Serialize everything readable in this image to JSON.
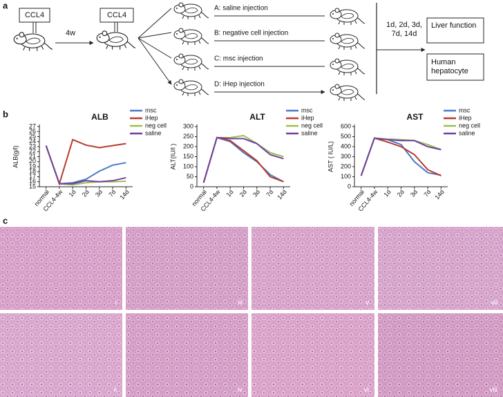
{
  "panel_labels": [
    "a",
    "b",
    "c"
  ],
  "diagram": {
    "ccl4_boxes": [
      "CCL4",
      "CCL4"
    ],
    "duration": "4w",
    "groups": [
      "A: saline injection",
      "B: negative cell injection",
      "C: msc injection",
      "D:  iHep  injection"
    ],
    "timepoints": "1d, 2d, 3d, 7d, 14d",
    "outcomes": [
      "Liver function",
      "Human hepatocyte"
    ]
  },
  "chart_data": [
    {
      "type": "line",
      "title": "ALB",
      "y_label": "ALB(g/l)",
      "categories": [
        "normal",
        "CCL4-4w",
        "1d",
        "2d",
        "3d",
        "7d",
        "14d"
      ],
      "ylim": [
        15,
        27
      ],
      "yticks": [
        15,
        16,
        17,
        18,
        19,
        20,
        21,
        22,
        23,
        24,
        25,
        26,
        27
      ],
      "series": [
        {
          "name": "msc",
          "color": "#4a78c8",
          "values": [
            23.2,
            15.6,
            15.8,
            16.5,
            18.1,
            19.3,
            19.8
          ]
        },
        {
          "name": "iHep",
          "color": "#b83a2c",
          "values": [
            23.2,
            15.6,
            24.4,
            23.3,
            22.8,
            23.2,
            23.6
          ]
        },
        {
          "name": "neg cell",
          "color": "#9cbf4e",
          "values": [
            23.2,
            15.6,
            15.4,
            15.8,
            16.0,
            16.0,
            16.1
          ]
        },
        {
          "name": "saline",
          "color": "#7040a0",
          "values": [
            23.2,
            15.6,
            15.6,
            16.2,
            16.0,
            16.2,
            16.8
          ]
        }
      ]
    },
    {
      "type": "line",
      "title": "ALT",
      "y_label": "ALT(IU/l )",
      "categories": [
        "normal",
        "CCL4-4w",
        "1d",
        "2d",
        "3d",
        "7d",
        "14d"
      ],
      "ylim": [
        0,
        300
      ],
      "yticks": [
        0,
        50,
        100,
        150,
        200,
        250,
        300
      ],
      "series": [
        {
          "name": "msc",
          "color": "#4a78c8",
          "values": [
            20,
            245,
            225,
            170,
            125,
            60,
            25
          ]
        },
        {
          "name": "iHep",
          "color": "#b83a2c",
          "values": [
            20,
            245,
            230,
            180,
            130,
            50,
            25
          ]
        },
        {
          "name": "neg cell",
          "color": "#9cbf4e",
          "values": [
            20,
            245,
            245,
            255,
            215,
            170,
            150
          ]
        },
        {
          "name": "saline",
          "color": "#7040a0",
          "values": [
            20,
            245,
            240,
            240,
            215,
            160,
            140
          ]
        }
      ]
    },
    {
      "type": "line",
      "title": "AST",
      "y_label": "AST ( IU/L)",
      "categories": [
        "normal",
        "CCL4-4w",
        "1d",
        "2d",
        "3d",
        "7d",
        "14d"
      ],
      "ylim": [
        0,
        600
      ],
      "yticks": [
        0,
        100,
        200,
        300,
        400,
        500,
        600
      ],
      "series": [
        {
          "name": "msc",
          "color": "#4a78c8",
          "values": [
            110,
            485,
            470,
            420,
            250,
            140,
            115
          ]
        },
        {
          "name": "iHep",
          "color": "#b83a2c",
          "values": [
            110,
            485,
            445,
            400,
            320,
            170,
            110
          ]
        },
        {
          "name": "neg cell",
          "color": "#9cbf4e",
          "values": [
            110,
            485,
            475,
            470,
            460,
            420,
            370
          ]
        },
        {
          "name": "saline",
          "color": "#7040a0",
          "values": [
            110,
            485,
            470,
            460,
            460,
            400,
            370
          ]
        }
      ]
    }
  ],
  "histology": {
    "labels": [
      "i",
      "iii",
      "v",
      "vii",
      "ii",
      "iv",
      "vi",
      "viii"
    ]
  }
}
